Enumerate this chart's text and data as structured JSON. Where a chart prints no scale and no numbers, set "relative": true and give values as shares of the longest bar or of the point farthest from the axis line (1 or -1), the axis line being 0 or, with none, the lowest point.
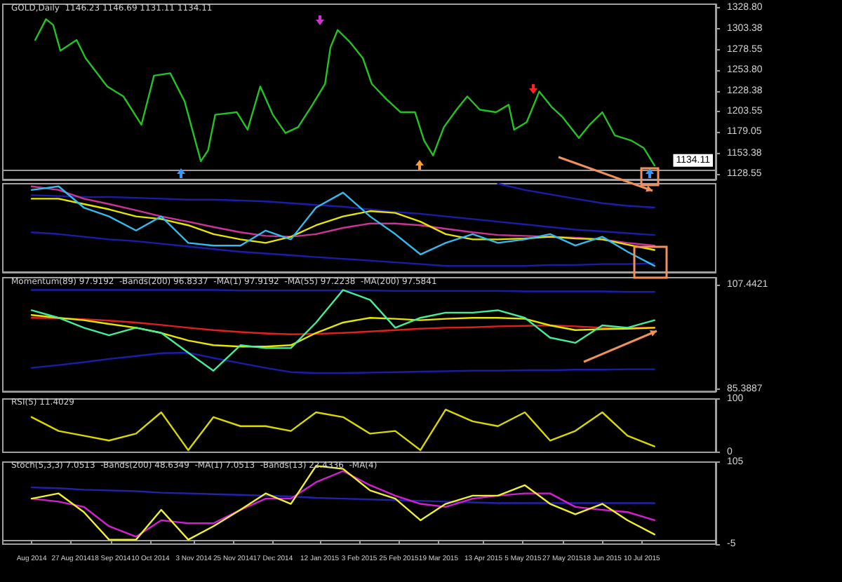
{
  "chart_data": [
    {
      "type": "line",
      "title": "GOLD,Daily  1146.23 1146.69 1131.11 1134.11",
      "marker": "none",
      "tick_labels": "y",
      "x": [
        "2014-08-07",
        "2014-08-13",
        "2014-08-17",
        "2014-08-21",
        "2014-08-30",
        "2014-09-04",
        "2014-09-16",
        "2014-09-25",
        "2014-10-05",
        "2014-10-12",
        "2014-10-21",
        "2014-10-29",
        "2014-11-07",
        "2014-11-11",
        "2014-11-15",
        "2014-11-27",
        "2014-12-03",
        "2014-12-10",
        "2014-12-17",
        "2014-12-24",
        "2014-12-31",
        "2015-01-08",
        "2015-01-15",
        "2015-01-18",
        "2015-01-22",
        "2015-01-29",
        "2015-02-05",
        "2015-02-10",
        "2015-02-18",
        "2015-02-26",
        "2015-03-06",
        "2015-03-11",
        "2015-03-16",
        "2015-03-22",
        "2015-03-29",
        "2015-04-04",
        "2015-04-11",
        "2015-04-20",
        "2015-04-27",
        "2015-04-30",
        "2015-05-07",
        "2015-05-14",
        "2015-05-21",
        "2015-05-27",
        "2015-06-05",
        "2015-06-11",
        "2015-06-18",
        "2015-06-25",
        "2015-07-04",
        "2015-07-11",
        "2015-07-17"
      ],
      "xlim": [
        "2014-07-20",
        "2015-08-20"
      ],
      "ylim": [
        1122,
        1333
      ],
      "yticks": [
        {
          "value": 1328.8,
          "label": "1328.80"
        },
        {
          "value": 1303.38,
          "label": "1303.38"
        },
        {
          "value": 1278.55,
          "label": "1278.55"
        },
        {
          "value": 1253.8,
          "label": "1253.80"
        },
        {
          "value": 1228.38,
          "label": "1228.38"
        },
        {
          "value": 1203.55,
          "label": "1203.55"
        },
        {
          "value": 1179.05,
          "label": "1179.05"
        },
        {
          "value": 1153.38,
          "label": "1153.38"
        },
        {
          "value": 1128.55,
          "label": "1128.55"
        }
      ],
      "ref_lines": [
        {
          "axis": "y",
          "value": 1134.11,
          "label": "1134.11",
          "color": "#9a9a9a"
        }
      ],
      "series": [
        {
          "color": "#22c322",
          "values": [
            1290,
            1315,
            1308,
            1277,
            1290,
            1268,
            1234,
            1222,
            1188,
            1247,
            1250,
            1216,
            1144,
            1157,
            1200,
            1203,
            1182,
            1234,
            1200,
            1178,
            1185,
            1212,
            1237,
            1281,
            1302,
            1287,
            1268,
            1237,
            1219,
            1203,
            1203,
            1169,
            1151,
            1185,
            1206,
            1222,
            1206,
            1203,
            1212,
            1182,
            1191,
            1228,
            1209,
            1197,
            1172,
            1188,
            1203,
            1175,
            1169,
            1160,
            1139
          ]
        }
      ]
    },
    {
      "type": "line",
      "relative": true,
      "marker": "none",
      "tick_labels": false,
      "x": [
        "2014-08-05",
        "2014-08-20",
        "2014-09-03",
        "2014-09-17",
        "2014-10-02",
        "2014-10-16",
        "2014-10-31",
        "2014-11-14",
        "2014-11-29",
        "2014-12-13",
        "2014-12-27",
        "2015-01-10",
        "2015-01-25",
        "2015-02-09",
        "2015-02-23",
        "2015-03-09",
        "2015-03-23",
        "2015-04-07",
        "2015-04-21",
        "2015-05-06",
        "2015-05-20",
        "2015-06-03",
        "2015-06-18",
        "2015-07-02",
        "2015-07-17"
      ],
      "xlim": [
        "2014-07-20",
        "2015-08-20"
      ],
      "series": [
        {
          "color": "#1c1caa",
          "values": [
            0.87,
            0.86,
            0.85,
            0.85,
            0.84,
            0.83,
            0.82,
            0.82,
            0.81,
            0.8,
            0.78,
            0.76,
            0.74,
            0.71,
            0.68,
            0.66,
            0.63,
            0.6,
            0.57,
            0.54,
            0.51,
            0.48,
            0.46,
            0.44,
            0.42
          ]
        },
        {
          "color": "#1c1caa",
          "values": [
            null,
            null,
            null,
            null,
            null,
            null,
            null,
            null,
            null,
            null,
            null,
            null,
            null,
            null,
            null,
            null,
            null,
            null,
            1,
            0.93,
            0.88,
            0.83,
            0.78,
            0.75,
            0.73
          ]
        },
        {
          "color": "#1c1caa",
          "values": [
            0.45,
            0.43,
            0.4,
            0.37,
            0.35,
            0.32,
            0.29,
            0.26,
            0.23,
            0.21,
            0.19,
            0.17,
            0.15,
            0.13,
            0.11,
            0.09,
            0.07,
            0.07,
            0.07,
            0.07,
            0.08,
            0.08,
            0.09,
            0.09,
            0.1
          ]
        },
        {
          "color": "#cc3399",
          "values": [
            0.97,
            0.93,
            0.83,
            0.77,
            0.7,
            0.63,
            0.57,
            0.51,
            0.45,
            0.41,
            0.4,
            0.43,
            0.5,
            0.55,
            0.55,
            0.53,
            0.49,
            0.45,
            0.42,
            0.41,
            0.4,
            0.39,
            0.37,
            0.33,
            0.3
          ]
        },
        {
          "color": "#e6e600",
          "values": [
            0.83,
            0.83,
            0.77,
            0.71,
            0.63,
            0.6,
            0.53,
            0.43,
            0.37,
            0.33,
            0.4,
            0.53,
            0.63,
            0.69,
            0.67,
            0.57,
            0.43,
            0.37,
            0.37,
            0.38,
            0.4,
            0.38,
            0.37,
            0.31,
            0.25
          ]
        },
        {
          "color": "#33bbee",
          "values": [
            0.93,
            0.97,
            0.73,
            0.63,
            0.47,
            0.63,
            0.33,
            0.3,
            0.3,
            0.47,
            0.37,
            0.73,
            0.9,
            0.63,
            0.43,
            0.2,
            0.33,
            0.43,
            0.33,
            0.37,
            0.43,
            0.3,
            0.4,
            0.23,
            0.07
          ]
        }
      ]
    },
    {
      "type": "line",
      "title": "Momentum(89) 97.9192  -Bands(200) 96.8337  -MA(1) 97.9192  -MA(55) 97.2238  -MA(200) 97.5841",
      "marker": "none",
      "tick_labels": "y",
      "x": [
        "2014-08-05",
        "2014-08-20",
        "2014-09-03",
        "2014-09-17",
        "2014-10-02",
        "2014-10-16",
        "2014-10-31",
        "2014-11-14",
        "2014-11-29",
        "2014-12-13",
        "2014-12-27",
        "2015-01-10",
        "2015-01-25",
        "2015-02-09",
        "2015-02-23",
        "2015-03-09",
        "2015-03-23",
        "2015-04-07",
        "2015-04-21",
        "2015-05-06",
        "2015-05-20",
        "2015-06-03",
        "2015-06-18",
        "2015-07-02",
        "2015-07-17"
      ],
      "xlim": [
        "2014-07-20",
        "2015-08-20"
      ],
      "ylim": [
        84.9,
        109
      ],
      "yticks": [
        107.4421,
        85.3887
      ],
      "series": [
        {
          "color": "#1c1caa",
          "values": [
            106.4,
            106.4,
            106.4,
            106.4,
            106.4,
            106.4,
            106.4,
            106.4,
            106.3,
            106.3,
            106.3,
            106.3,
            106.3,
            106.3,
            106.2,
            106.2,
            106.2,
            106.2,
            106.2,
            106.1,
            106.1,
            106.1,
            106.1,
            106.0,
            106.0
          ]
        },
        {
          "color": "#1c1caa",
          "values": [
            89.9,
            90.5,
            91.1,
            91.8,
            92.4,
            93.0,
            93.1,
            92.0,
            90.9,
            89.9,
            89.0,
            88.8,
            88.8,
            88.9,
            89.0,
            89.1,
            89.2,
            89.3,
            89.3,
            89.4,
            89.4,
            89.5,
            89.5,
            89.6,
            89.6
          ]
        },
        {
          "color": "#e02020",
          "values": [
            100.5,
            100.4,
            100.2,
            99.9,
            99.5,
            99.0,
            98.4,
            97.9,
            97.5,
            97.2,
            97.0,
            97.1,
            97.3,
            97.6,
            97.9,
            98.2,
            98.4,
            98.5,
            98.7,
            98.8,
            98.9,
            98.7,
            98.4,
            98.4,
            98.4
          ]
        },
        {
          "color": "#e6e600",
          "values": [
            101.1,
            100.5,
            100.0,
            99.2,
            98.4,
            97.3,
            95.7,
            94.7,
            94.4,
            94.4,
            94.7,
            97.3,
            99.5,
            100.5,
            100.3,
            100.0,
            100.3,
            100.5,
            100.5,
            100.3,
            98.9,
            97.9,
            98.1,
            98.2,
            98.4
          ]
        },
        {
          "color": "#44ee99",
          "values": [
            102.1,
            100.5,
            98.4,
            96.8,
            98.4,
            97.3,
            93.1,
            89.3,
            94.7,
            94.1,
            94.1,
            99.5,
            106.4,
            104.3,
            98.4,
            100.5,
            101.6,
            101.6,
            102.1,
            100.5,
            96.3,
            95.2,
            98.9,
            98.4,
            100.0
          ]
        }
      ]
    },
    {
      "type": "line",
      "title": "RSI(5) 11.4029",
      "marker": "none",
      "tick_labels": "y",
      "x": [
        "2014-08-05",
        "2014-08-20",
        "2014-09-03",
        "2014-09-17",
        "2014-10-02",
        "2014-10-16",
        "2014-10-31",
        "2014-11-14",
        "2014-11-29",
        "2014-12-13",
        "2014-12-27",
        "2015-01-10",
        "2015-01-25",
        "2015-02-09",
        "2015-02-23",
        "2015-03-09",
        "2015-03-23",
        "2015-04-07",
        "2015-04-21",
        "2015-05-06",
        "2015-05-20",
        "2015-06-03",
        "2015-06-18",
        "2015-07-02",
        "2015-07-17"
      ],
      "xlim": [
        "2014-07-20",
        "2015-08-20"
      ],
      "ylim": [
        0,
        100
      ],
      "yticks": [
        100,
        0
      ],
      "series": [
        {
          "color": "#d8d800",
          "values": [
            66,
            40,
            31,
            22,
            35,
            75,
            4,
            66,
            49,
            49,
            40,
            75,
            66,
            35,
            40,
            4,
            80,
            58,
            49,
            75,
            22,
            40,
            75,
            31,
            11
          ]
        }
      ]
    },
    {
      "type": "line",
      "title": "Stoch(5,3,3) 7.0513  -Bands(200) 48.6349  -MA(1) 7.0513  -Bands(13) 22.4336  -MA(4)",
      "marker": "none",
      "x": [
        "2014-08-05",
        "2014-08-20",
        "2014-09-03",
        "2014-09-17",
        "2014-10-02",
        "2014-10-16",
        "2014-10-31",
        "2014-11-14",
        "2014-11-29",
        "2014-12-13",
        "2014-12-27",
        "2015-01-10",
        "2015-01-25",
        "2015-02-09",
        "2015-02-23",
        "2015-03-09",
        "2015-03-23",
        "2015-04-07",
        "2015-04-21",
        "2015-05-06",
        "2015-05-20",
        "2015-06-03",
        "2015-06-18",
        "2015-07-02",
        "2015-07-17"
      ],
      "xlim": [
        "2014-07-20",
        "2015-08-20"
      ],
      "ylim": [
        -5,
        105
      ],
      "yticks": [
        105,
        -5
      ],
      "xticks": [
        {
          "value": "2014-08-05",
          "label": "Aug 2014"
        },
        {
          "value": "2014-08-27",
          "label": "27 Aug 2014"
        },
        {
          "value": "2014-09-18",
          "label": "18 Sep 2014"
        },
        {
          "value": "2014-10-10",
          "label": "10 Oct 2014"
        },
        {
          "value": "2014-11-03",
          "label": "3 Nov 2014"
        },
        {
          "value": "2014-11-25",
          "label": "25 Nov 2014"
        },
        {
          "value": "2014-12-17",
          "label": "17 Dec 2014"
        },
        {
          "value": "2015-01-12",
          "label": "12 Jan 2015"
        },
        {
          "value": "2015-02-03",
          "label": "3 Feb 2015"
        },
        {
          "value": "2015-02-25",
          "label": "25 Feb 2015"
        },
        {
          "value": "2015-03-19",
          "label": "19 Mar 2015"
        },
        {
          "value": "2015-04-13",
          "label": "13 Apr 2015"
        },
        {
          "value": "2015-05-05",
          "label": "5 May 2015"
        },
        {
          "value": "2015-05-27",
          "label": "27 May 2015"
        },
        {
          "value": "2015-06-18",
          "label": "18 Jun 2015"
        },
        {
          "value": "2015-07-10",
          "label": "10 Jul 2015"
        }
      ],
      "series": [
        {
          "color": "#2222aa",
          "values": [
            71,
            70,
            68,
            67,
            66,
            64,
            63,
            62,
            61,
            60,
            59,
            57,
            56,
            55,
            54,
            53,
            52,
            51,
            50,
            50,
            50,
            50,
            50,
            50,
            50
          ]
        },
        {
          "color": "#d020d0",
          "values": [
            56,
            52,
            45,
            19,
            5,
            27,
            23,
            23,
            41,
            56,
            56,
            78,
            93,
            74,
            60,
            49,
            45,
            56,
            60,
            63,
            63,
            45,
            41,
            38,
            27
          ]
        },
        {
          "color": "#f0f030",
          "values": [
            56,
            63,
            38,
            1,
            1,
            41,
            1,
            19,
            41,
            63,
            49,
            100,
            96,
            67,
            56,
            27,
            49,
            60,
            60,
            74,
            49,
            35,
            49,
            27,
            8
          ]
        }
      ]
    }
  ]
}
